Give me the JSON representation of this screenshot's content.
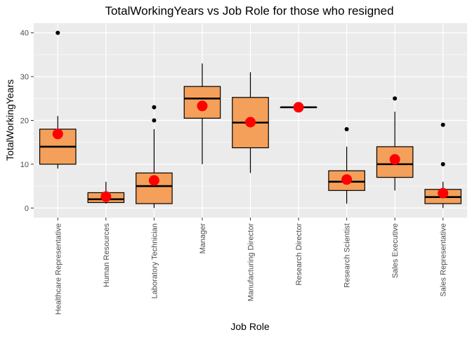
{
  "chart_data": {
    "type": "box",
    "title": "TotalWorkingYears vs Job Role for those who resigned",
    "xlabel": "Job Role",
    "ylabel": "TotalWorkingYears",
    "ylim": [
      -2.2,
      42.2
    ],
    "yticks": [
      0,
      10,
      20,
      30,
      40
    ],
    "grid": true,
    "legend": "none",
    "colors": {
      "panel": "#ebebeb",
      "grid": "#ffffff",
      "box_fill": "#f4a05a",
      "box_stroke": "#000000",
      "mean_point": "#ff0000",
      "outlier": "#000000"
    },
    "categories": [
      "Healthcare Representative",
      "Human Resources",
      "Laboratory Technician",
      "Manager",
      "Manufacturing Director",
      "Research Director",
      "Research Scientist",
      "Sales Executive",
      "Sales Representative"
    ],
    "boxes": [
      {
        "whisker_low": 9,
        "q1": 10,
        "median": 14,
        "q3": 18,
        "whisker_high": 21,
        "mean": 16.9,
        "outliers": [
          40
        ]
      },
      {
        "whisker_low": 1,
        "q1": 1.25,
        "median": 2,
        "q3": 3.5,
        "whisker_high": 6,
        "mean": 2.6,
        "outliers": []
      },
      {
        "whisker_low": 0,
        "q1": 1,
        "median": 5,
        "q3": 8,
        "whisker_high": 18,
        "mean": 6.3,
        "outliers": [
          20,
          23
        ]
      },
      {
        "whisker_low": 10,
        "q1": 20.5,
        "median": 25,
        "q3": 27.75,
        "whisker_high": 33,
        "mean": 23.3,
        "outliers": []
      },
      {
        "whisker_low": 8,
        "q1": 13.75,
        "median": 19.5,
        "q3": 25.25,
        "whisker_high": 31,
        "mean": 19.6,
        "outliers": []
      },
      {
        "whisker_low": 23,
        "q1": 23,
        "median": 23,
        "q3": 23,
        "whisker_high": 23,
        "mean": 23,
        "outliers": []
      },
      {
        "whisker_low": 1,
        "q1": 4,
        "median": 6,
        "q3": 8.5,
        "whisker_high": 14,
        "mean": 6.5,
        "outliers": [
          18
        ]
      },
      {
        "whisker_low": 4,
        "q1": 7,
        "median": 10,
        "q3": 14,
        "whisker_high": 22,
        "mean": 11.1,
        "outliers": [
          25
        ]
      },
      {
        "whisker_low": 0,
        "q1": 1,
        "median": 2.5,
        "q3": 4.25,
        "whisker_high": 6,
        "mean": 3.4,
        "outliers": [
          10,
          19
        ]
      }
    ]
  }
}
